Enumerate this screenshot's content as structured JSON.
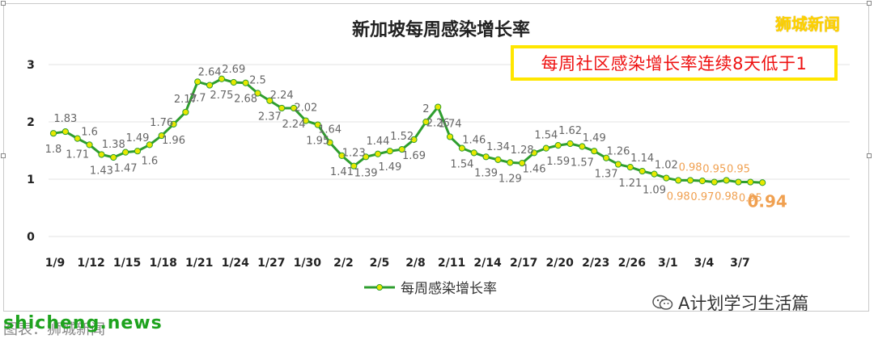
{
  "brand": "狮城新闻",
  "callout": "每周社区感染增长率连续8天低于1",
  "wechat_account": "A计划学习生活篇",
  "watermark": "shicheng.news",
  "source_caption": "图表：狮城新闻",
  "colors": {
    "line": "#2e9e2e",
    "marker": "#e8e800",
    "label": "#666666",
    "highlight": "#f0a050",
    "callout_border": "#ffe600",
    "callout_text": "#ee1111"
  },
  "chart_data": {
    "type": "line",
    "title": "新加坡每周感染增长率",
    "xlabel": "",
    "ylabel": "",
    "ylim": [
      0,
      3
    ],
    "yticks": [
      "0",
      "1",
      "2",
      "3"
    ],
    "grid": true,
    "legend_position": "bottom",
    "x_tick_labels": [
      "1/9",
      "1/12",
      "1/15",
      "1/18",
      "1/21",
      "1/24",
      "1/27",
      "1/30",
      "2/2",
      "2/5",
      "2/8",
      "2/11",
      "2/14",
      "2/17",
      "2/20",
      "2/23",
      "2/26",
      "3/1",
      "3/4",
      "3/7"
    ],
    "series": [
      {
        "name": "每周感染增长率",
        "x": [
          "1/9",
          "1/10",
          "1/11",
          "1/12",
          "1/13",
          "1/14",
          "1/15",
          "1/16",
          "1/17",
          "1/18",
          "1/19",
          "1/20",
          "1/21",
          "1/22",
          "1/23",
          "1/24",
          "1/25",
          "1/26",
          "1/27",
          "1/28",
          "1/29",
          "1/30",
          "1/31",
          "2/1",
          "2/2",
          "2/3",
          "2/4",
          "2/5",
          "2/6",
          "2/7",
          "2/8",
          "2/9",
          "2/10",
          "2/11",
          "2/12",
          "2/13",
          "2/14",
          "2/15",
          "2/16",
          "2/17",
          "2/18",
          "2/19",
          "2/20",
          "2/21",
          "2/22",
          "2/23",
          "2/24",
          "2/25",
          "2/26",
          "2/27",
          "2/28",
          "3/1",
          "3/2",
          "3/3",
          "3/4",
          "3/5",
          "3/6",
          "3/7",
          "3/8",
          "3/9"
        ],
        "values": [
          1.8,
          1.83,
          1.71,
          1.6,
          1.43,
          1.38,
          1.47,
          1.49,
          1.6,
          1.76,
          1.96,
          2.17,
          2.7,
          2.64,
          2.75,
          2.69,
          2.68,
          2.5,
          2.37,
          2.24,
          2.24,
          2.02,
          1.95,
          1.64,
          1.41,
          1.23,
          1.39,
          1.44,
          1.49,
          1.52,
          1.69,
          2,
          2.26,
          1.74,
          1.54,
          1.46,
          1.39,
          1.34,
          1.29,
          1.28,
          1.46,
          1.54,
          1.59,
          1.62,
          1.57,
          1.49,
          1.37,
          1.26,
          1.21,
          1.14,
          1.09,
          1.02,
          0.98,
          0.98,
          0.97,
          0.95,
          0.98,
          0.95,
          0.95,
          0.94
        ],
        "labels": [
          "1.8",
          "1.83",
          "1.71",
          "1.6",
          "1.43",
          "1.38",
          "1.47",
          "1.49",
          "1.6",
          "1.76",
          "1.96",
          "2.17",
          "2.7",
          "2.64",
          "2.75",
          "2.69",
          "2.68",
          "2.5",
          "2.37",
          "2.24",
          "2.24",
          "2.02",
          "1.95",
          "1.64",
          "1.41",
          "1.23",
          "1.39",
          "1.44",
          "1.49",
          "1.52",
          "1.69",
          "2",
          "2.26",
          "1.74",
          "1.54",
          "1.46",
          "1.39",
          "1.34",
          "1.29",
          "1.28",
          "1.46",
          "1.54",
          "1.59",
          "1.62",
          "1.57",
          "1.49",
          "1.37",
          "1.26",
          "1.21",
          "1.14",
          "1.09",
          "1.02",
          "0.98",
          "0.98",
          "0.97",
          "0.95",
          "0.98",
          "0.95",
          "0.95",
          "0.94"
        ]
      }
    ]
  }
}
